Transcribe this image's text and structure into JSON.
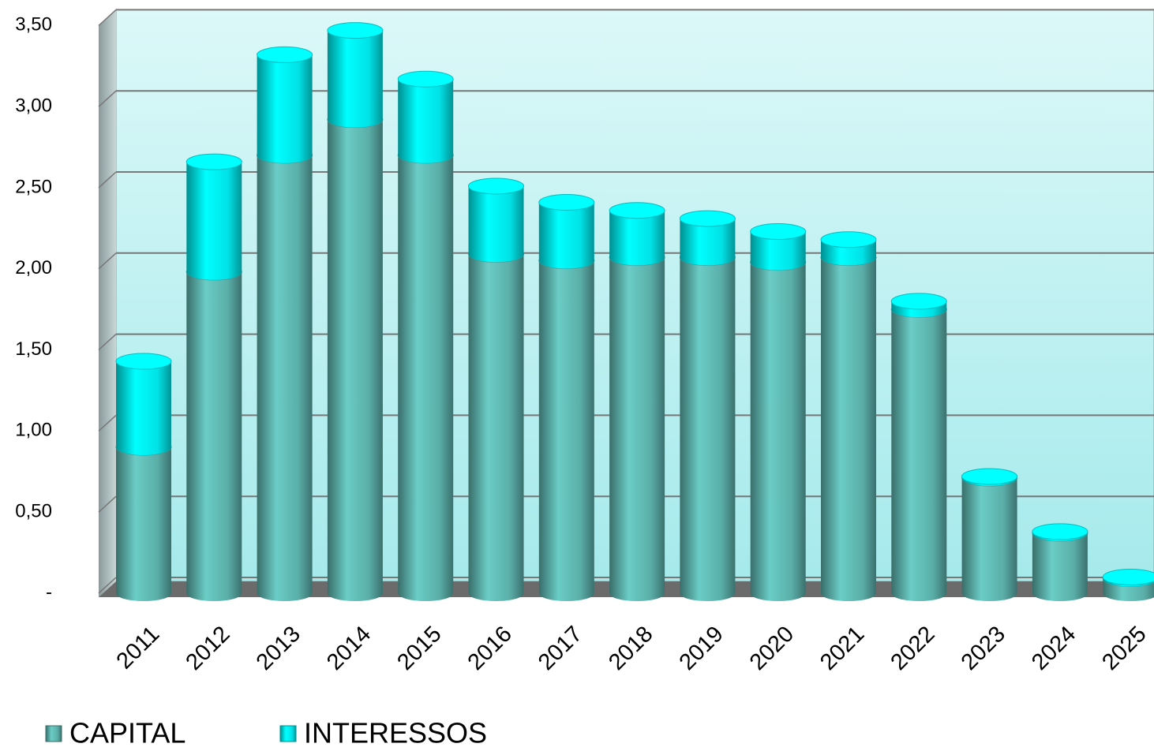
{
  "chart_data": {
    "type": "bar3d_stacked",
    "categories": [
      "2011",
      "2012",
      "2013",
      "2014",
      "2015",
      "2016",
      "2017",
      "2018",
      "2019",
      "2020",
      "2021",
      "2022",
      "2023",
      "2024",
      "2025"
    ],
    "series": [
      {
        "name": "CAPITAL",
        "color": "#5fb7b1",
        "values": [
          0.9,
          1.98,
          2.7,
          2.92,
          2.7,
          2.09,
          2.05,
          2.07,
          2.07,
          2.04,
          2.07,
          1.75,
          0.71,
          0.37,
          0.09
        ]
      },
      {
        "name": "INTERESSOS",
        "color": "#00eef2",
        "values": [
          0.53,
          0.68,
          0.62,
          0.55,
          0.47,
          0.42,
          0.36,
          0.29,
          0.24,
          0.19,
          0.11,
          0.05,
          0.01,
          0.01,
          0.01
        ]
      }
    ],
    "ylim": [
      0,
      3.5
    ],
    "yticks": [
      {
        "value": 0,
        "label": "-"
      },
      {
        "value": 0.5,
        "label": "0,50"
      },
      {
        "value": 1,
        "label": "1,00"
      },
      {
        "value": 1.5,
        "label": "1,50"
      },
      {
        "value": 2,
        "label": "2,00"
      },
      {
        "value": 2.5,
        "label": "2,50"
      },
      {
        "value": 3,
        "label": "3,00"
      },
      {
        "value": 3.5,
        "label": "3,50"
      }
    ],
    "grid": true,
    "legend": "bottom-left"
  }
}
